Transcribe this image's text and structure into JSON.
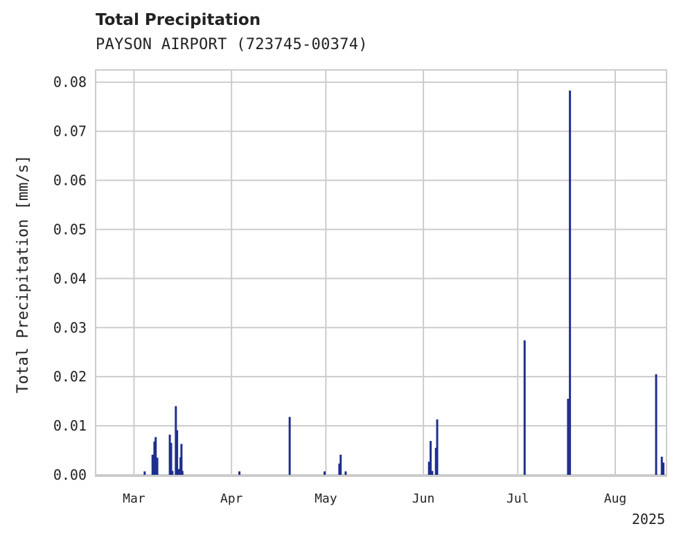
{
  "chart_data": {
    "type": "bar",
    "title": "Total Precipitation",
    "subtitle": "PAYSON AIRPORT (723745-00374)",
    "xlabel": "",
    "ylabel": "Total Precipitation [mm/s]",
    "ylim": [
      0,
      0.0825
    ],
    "yticks": [
      "0.00",
      "0.01",
      "0.02",
      "0.03",
      "0.04",
      "0.05",
      "0.06",
      "0.07",
      "0.08"
    ],
    "xticks": [
      {
        "label": "Mar",
        "day": 0
      },
      {
        "label": "Apr",
        "day": 31
      },
      {
        "label": "May",
        "day": 61
      },
      {
        "label": "Jun",
        "day": 92
      },
      {
        "label": "Jul",
        "day": 122
      },
      {
        "label": "Aug",
        "day": 153
      }
    ],
    "year_label": "2025",
    "x_unit": "days since Mar 1, 2025",
    "xlim": [
      -12.2,
      169.3
    ],
    "grid": true,
    "color": "#1f2f8f",
    "points": [
      {
        "day": 3.4,
        "value": 0.0007
      },
      {
        "day": 5.9,
        "value": 0.0041
      },
      {
        "day": 6.5,
        "value": 0.0068
      },
      {
        "day": 6.9,
        "value": 0.0077
      },
      {
        "day": 7.4,
        "value": 0.0035
      },
      {
        "day": 11.4,
        "value": 0.0082
      },
      {
        "day": 11.8,
        "value": 0.0065
      },
      {
        "day": 12.2,
        "value": 0.0008
      },
      {
        "day": 13.3,
        "value": 0.014
      },
      {
        "day": 13.7,
        "value": 0.0091
      },
      {
        "day": 14.3,
        "value": 0.0012
      },
      {
        "day": 14.8,
        "value": 0.0036
      },
      {
        "day": 15.1,
        "value": 0.0063
      },
      {
        "day": 15.4,
        "value": 0.0008
      },
      {
        "day": 33.5,
        "value": 0.0007
      },
      {
        "day": 49.5,
        "value": 0.0118
      },
      {
        "day": 60.6,
        "value": 0.0007
      },
      {
        "day": 65.3,
        "value": 0.0023
      },
      {
        "day": 65.7,
        "value": 0.0041
      },
      {
        "day": 67.3,
        "value": 0.0007
      },
      {
        "day": 93.8,
        "value": 0.0027
      },
      {
        "day": 94.3,
        "value": 0.0069
      },
      {
        "day": 94.8,
        "value": 0.0008
      },
      {
        "day": 96.0,
        "value": 0.0055
      },
      {
        "day": 96.4,
        "value": 0.0113
      },
      {
        "day": 124.2,
        "value": 0.0274
      },
      {
        "day": 138.0,
        "value": 0.0155
      },
      {
        "day": 138.6,
        "value": 0.0783
      },
      {
        "day": 166.0,
        "value": 0.0205
      },
      {
        "day": 167.8,
        "value": 0.0037
      },
      {
        "day": 168.3,
        "value": 0.0025
      }
    ]
  }
}
